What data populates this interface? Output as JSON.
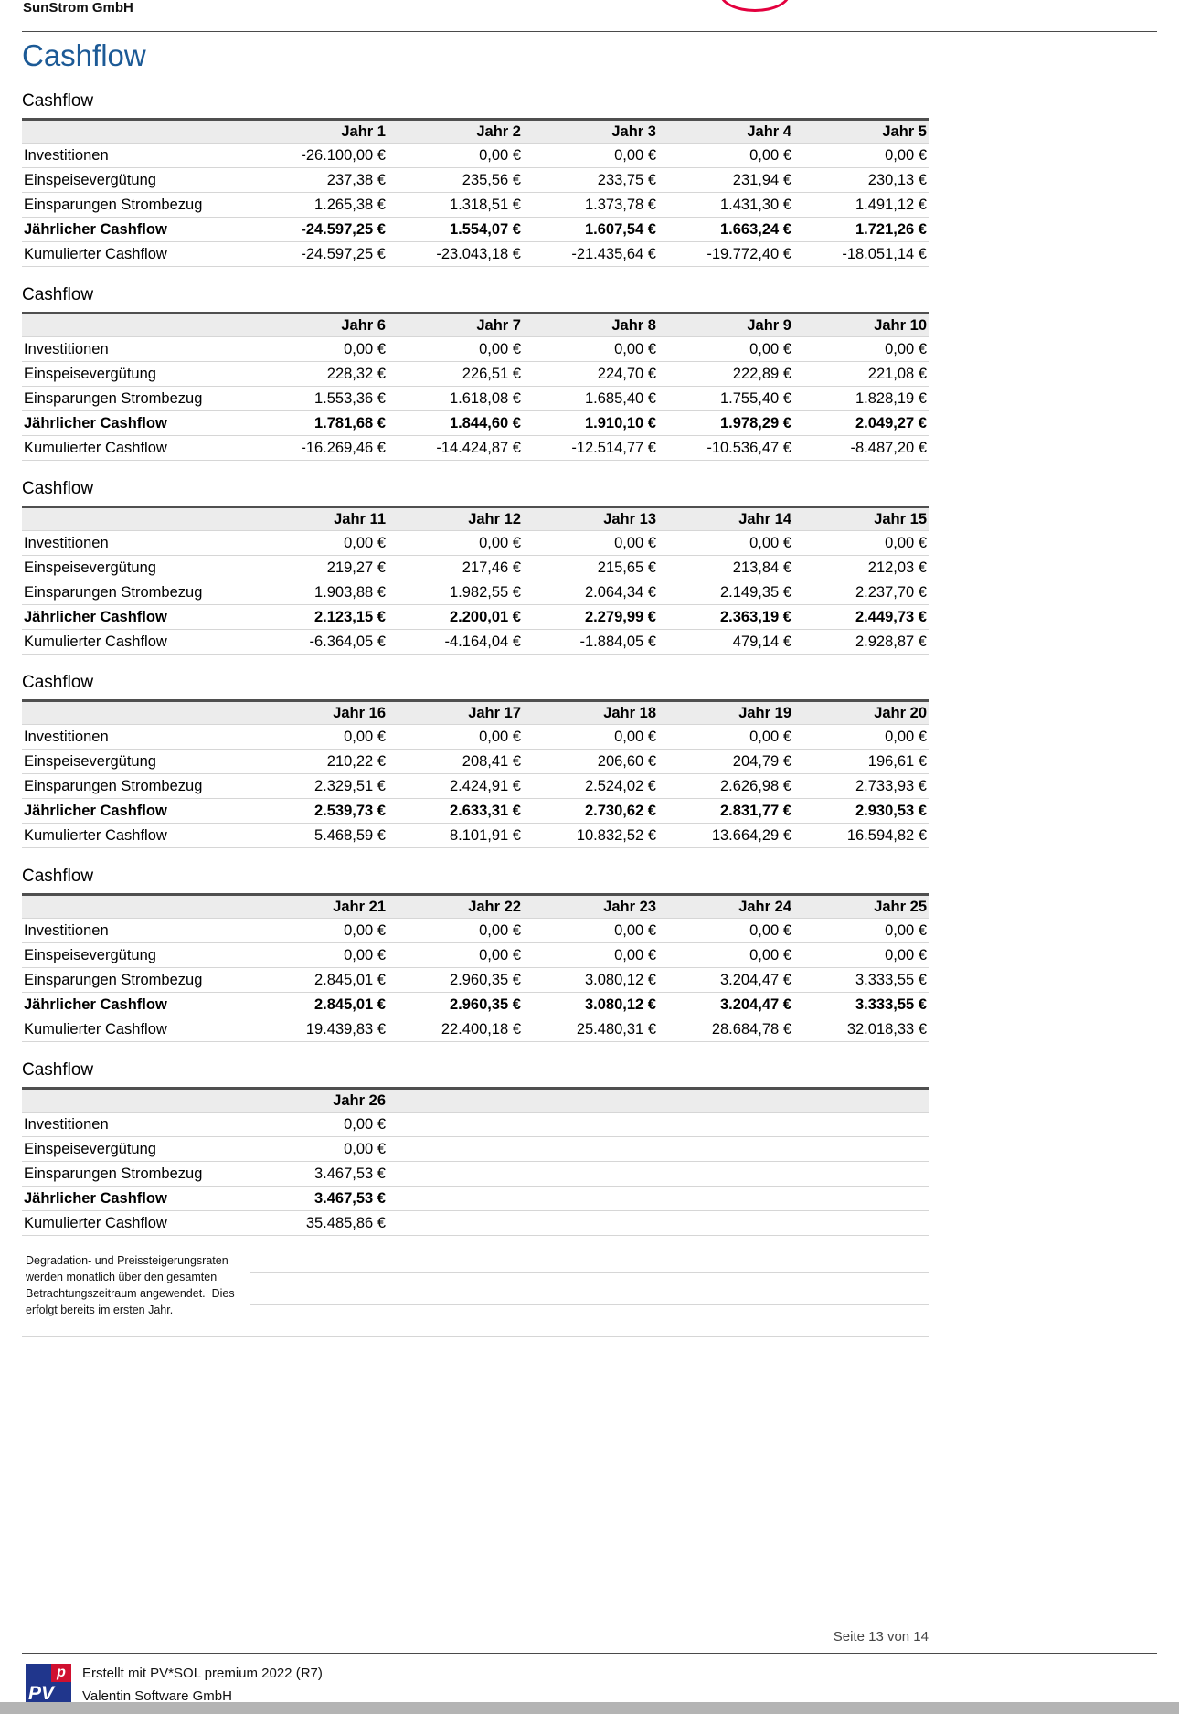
{
  "header": {
    "company": "SunStrom GmbH",
    "title": "Cashflow"
  },
  "tables": [
    {
      "title": "Cashflow",
      "columns": [
        "Jahr 1",
        "Jahr 2",
        "Jahr 3",
        "Jahr 4",
        "Jahr 5"
      ],
      "rows": [
        {
          "label": "Investitionen",
          "bold": false,
          "values": [
            "-26.100,00 €",
            "0,00 €",
            "0,00 €",
            "0,00 €",
            "0,00 €"
          ]
        },
        {
          "label": "Einspeisevergütung",
          "bold": false,
          "values": [
            "237,38 €",
            "235,56 €",
            "233,75 €",
            "231,94 €",
            "230,13 €"
          ]
        },
        {
          "label": "Einsparungen Strombezug",
          "bold": false,
          "values": [
            "1.265,38 €",
            "1.318,51 €",
            "1.373,78 €",
            "1.431,30 €",
            "1.491,12 €"
          ]
        },
        {
          "label": "Jährlicher Cashflow",
          "bold": true,
          "values": [
            "-24.597,25 €",
            "1.554,07 €",
            "1.607,54 €",
            "1.663,24 €",
            "1.721,26 €"
          ]
        },
        {
          "label": "Kumulierter Cashflow",
          "bold": false,
          "values": [
            "-24.597,25 €",
            "-23.043,18 €",
            "-21.435,64 €",
            "-19.772,40 €",
            "-18.051,14 €"
          ]
        }
      ]
    },
    {
      "title": "Cashflow",
      "columns": [
        "Jahr 6",
        "Jahr 7",
        "Jahr 8",
        "Jahr 9",
        "Jahr 10"
      ],
      "rows": [
        {
          "label": "Investitionen",
          "bold": false,
          "values": [
            "0,00 €",
            "0,00 €",
            "0,00 €",
            "0,00 €",
            "0,00 €"
          ]
        },
        {
          "label": "Einspeisevergütung",
          "bold": false,
          "values": [
            "228,32 €",
            "226,51 €",
            "224,70 €",
            "222,89 €",
            "221,08 €"
          ]
        },
        {
          "label": "Einsparungen Strombezug",
          "bold": false,
          "values": [
            "1.553,36 €",
            "1.618,08 €",
            "1.685,40 €",
            "1.755,40 €",
            "1.828,19 €"
          ]
        },
        {
          "label": "Jährlicher Cashflow",
          "bold": true,
          "values": [
            "1.781,68 €",
            "1.844,60 €",
            "1.910,10 €",
            "1.978,29 €",
            "2.049,27 €"
          ]
        },
        {
          "label": "Kumulierter Cashflow",
          "bold": false,
          "values": [
            "-16.269,46 €",
            "-14.424,87 €",
            "-12.514,77 €",
            "-10.536,47 €",
            "-8.487,20 €"
          ]
        }
      ]
    },
    {
      "title": "Cashflow",
      "columns": [
        "Jahr 11",
        "Jahr 12",
        "Jahr 13",
        "Jahr 14",
        "Jahr 15"
      ],
      "rows": [
        {
          "label": "Investitionen",
          "bold": false,
          "values": [
            "0,00 €",
            "0,00 €",
            "0,00 €",
            "0,00 €",
            "0,00 €"
          ]
        },
        {
          "label": "Einspeisevergütung",
          "bold": false,
          "values": [
            "219,27 €",
            "217,46 €",
            "215,65 €",
            "213,84 €",
            "212,03 €"
          ]
        },
        {
          "label": "Einsparungen Strombezug",
          "bold": false,
          "values": [
            "1.903,88 €",
            "1.982,55 €",
            "2.064,34 €",
            "2.149,35 €",
            "2.237,70 €"
          ]
        },
        {
          "label": "Jährlicher Cashflow",
          "bold": true,
          "values": [
            "2.123,15 €",
            "2.200,01 €",
            "2.279,99 €",
            "2.363,19 €",
            "2.449,73 €"
          ]
        },
        {
          "label": "Kumulierter Cashflow",
          "bold": false,
          "values": [
            "-6.364,05 €",
            "-4.164,04 €",
            "-1.884,05 €",
            "479,14 €",
            "2.928,87 €"
          ]
        }
      ]
    },
    {
      "title": "Cashflow",
      "columns": [
        "Jahr 16",
        "Jahr 17",
        "Jahr 18",
        "Jahr 19",
        "Jahr 20"
      ],
      "rows": [
        {
          "label": "Investitionen",
          "bold": false,
          "values": [
            "0,00 €",
            "0,00 €",
            "0,00 €",
            "0,00 €",
            "0,00 €"
          ]
        },
        {
          "label": "Einspeisevergütung",
          "bold": false,
          "values": [
            "210,22 €",
            "208,41 €",
            "206,60 €",
            "204,79 €",
            "196,61 €"
          ]
        },
        {
          "label": "Einsparungen Strombezug",
          "bold": false,
          "values": [
            "2.329,51 €",
            "2.424,91 €",
            "2.524,02 €",
            "2.626,98 €",
            "2.733,93 €"
          ]
        },
        {
          "label": "Jährlicher Cashflow",
          "bold": true,
          "values": [
            "2.539,73 €",
            "2.633,31 €",
            "2.730,62 €",
            "2.831,77 €",
            "2.930,53 €"
          ]
        },
        {
          "label": "Kumulierter Cashflow",
          "bold": false,
          "values": [
            "5.468,59 €",
            "8.101,91 €",
            "10.832,52 €",
            "13.664,29 €",
            "16.594,82 €"
          ]
        }
      ]
    },
    {
      "title": "Cashflow",
      "columns": [
        "Jahr 21",
        "Jahr 22",
        "Jahr 23",
        "Jahr 24",
        "Jahr 25"
      ],
      "rows": [
        {
          "label": "Investitionen",
          "bold": false,
          "values": [
            "0,00 €",
            "0,00 €",
            "0,00 €",
            "0,00 €",
            "0,00 €"
          ]
        },
        {
          "label": "Einspeisevergütung",
          "bold": false,
          "values": [
            "0,00 €",
            "0,00 €",
            "0,00 €",
            "0,00 €",
            "0,00 €"
          ]
        },
        {
          "label": "Einsparungen Strombezug",
          "bold": false,
          "values": [
            "2.845,01 €",
            "2.960,35 €",
            "3.080,12 €",
            "3.204,47 €",
            "3.333,55 €"
          ]
        },
        {
          "label": "Jährlicher Cashflow",
          "bold": true,
          "values": [
            "2.845,01 €",
            "2.960,35 €",
            "3.080,12 €",
            "3.204,47 €",
            "3.333,55 €"
          ]
        },
        {
          "label": "Kumulierter Cashflow",
          "bold": false,
          "values": [
            "19.439,83 €",
            "22.400,18 €",
            "25.480,31 €",
            "28.684,78 €",
            "32.018,33 €"
          ]
        }
      ]
    },
    {
      "title": "Cashflow",
      "columns": [
        "Jahr 26"
      ],
      "rows": [
        {
          "label": "Investitionen",
          "bold": false,
          "values": [
            "0,00 €"
          ]
        },
        {
          "label": "Einspeisevergütung",
          "bold": false,
          "values": [
            "0,00 €"
          ]
        },
        {
          "label": "Einsparungen Strombezug",
          "bold": false,
          "values": [
            "3.467,53 €"
          ]
        },
        {
          "label": "Jährlicher Cashflow",
          "bold": true,
          "values": [
            "3.467,53 €"
          ]
        },
        {
          "label": "Kumulierter Cashflow",
          "bold": false,
          "values": [
            "35.485,86 €"
          ]
        }
      ]
    }
  ],
  "footnote": {
    "lines": [
      "Degradation- und Preissteigerungsraten",
      "werden monatlich über den gesamten",
      "Betrachtungszeitraum angewendet.  Dies",
      "erfolgt bereits im ersten Jahr."
    ]
  },
  "footer": {
    "page_label": "Seite 13 von 14",
    "created_with": "Erstellt mit PV*SOL premium 2022 (R7)",
    "vendor": "Valentin Software GmbH",
    "logo": {
      "pv": "PV",
      "p": "p"
    }
  },
  "colors": {
    "title_blue": "#1c5a96",
    "sunstrom_logo_red": "#e3003e",
    "pvsol_logo_blue": "#20368c",
    "pvsol_logo_red": "#d01030",
    "table_header_bg": "#ececec"
  }
}
